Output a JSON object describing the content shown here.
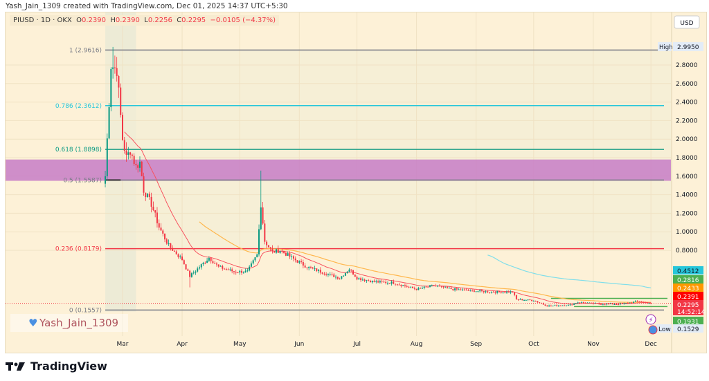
{
  "credit": "Yash_Jain_1309 created with TradingView.com, Dec 01, 2025 14:37 UTC+5:30",
  "legend": {
    "symbol": "PIUSD · 1D · OKX",
    "o_label": "O",
    "o": "0.2390",
    "h_label": "H",
    "h": "0.2390",
    "l_label": "L",
    "l": "0.2256",
    "c_label": "C",
    "c": "0.2295",
    "change": "−0.0105 (−4.37%)"
  },
  "watermark": {
    "text": "Yash_Jain_1309",
    "icon": "heart-icon"
  },
  "footer": {
    "brand": "TradingView",
    "icon": "tradingview-logo-icon"
  },
  "currency": "USD",
  "colors": {
    "up": "#089981",
    "down": "#f23645",
    "ema_short": "#f7525f",
    "ema_long": "#ffb74d",
    "sma_long": "#80deea",
    "zone": "#c77dc7"
  },
  "chart_data": {
    "type": "candlestick",
    "symbol": "PIUSD",
    "interval": "1D",
    "exchange": "OKX",
    "ylim": [
      0.0,
      3.2
    ],
    "y_ticks": [
      "2.8000",
      "2.6000",
      "2.4000",
      "2.2000",
      "2.0000",
      "1.8000",
      "1.6000",
      "1.4000",
      "1.2000",
      "1.0000",
      "0.8000"
    ],
    "x_ticks": [
      {
        "label": "Mar",
        "date": "2025-03-01"
      },
      {
        "label": "Apr",
        "date": "2025-04-01"
      },
      {
        "label": "May",
        "date": "2025-05-01"
      },
      {
        "label": "Jun",
        "date": "2025-06-01"
      },
      {
        "label": "Jul",
        "date": "2025-07-01"
      },
      {
        "label": "Aug",
        "date": "2025-08-01"
      },
      {
        "label": "Sep",
        "date": "2025-09-01"
      },
      {
        "label": "Oct",
        "date": "2025-10-01"
      },
      {
        "label": "Nov",
        "date": "2025-11-01"
      },
      {
        "label": "Dec",
        "date": "2025-12-01"
      }
    ],
    "approx_closes": [
      [
        "2025-02-20",
        1.6
      ],
      [
        "2025-02-23",
        2.8
      ],
      [
        "2025-02-26",
        2.75
      ],
      [
        "2025-03-01",
        2.0
      ],
      [
        "2025-03-03",
        1.8
      ],
      [
        "2025-03-05",
        1.88
      ],
      [
        "2025-03-08",
        1.7
      ],
      [
        "2025-03-10",
        1.75
      ],
      [
        "2025-03-12",
        1.45
      ],
      [
        "2025-03-16",
        1.3
      ],
      [
        "2025-03-20",
        1.05
      ],
      [
        "2025-03-25",
        0.85
      ],
      [
        "2025-04-01",
        0.7
      ],
      [
        "2025-04-05",
        0.52
      ],
      [
        "2025-04-10",
        0.62
      ],
      [
        "2025-04-15",
        0.72
      ],
      [
        "2025-04-20",
        0.62
      ],
      [
        "2025-04-28",
        0.57
      ],
      [
        "2025-05-05",
        0.57
      ],
      [
        "2025-05-10",
        0.75
      ],
      [
        "2025-05-12",
        1.3
      ],
      [
        "2025-05-14",
        0.9
      ],
      [
        "2025-05-18",
        0.78
      ],
      [
        "2025-05-22",
        0.8
      ],
      [
        "2025-05-28",
        0.72
      ],
      [
        "2025-06-05",
        0.62
      ],
      [
        "2025-06-15",
        0.55
      ],
      [
        "2025-06-22",
        0.5
      ],
      [
        "2025-06-27",
        0.6
      ],
      [
        "2025-07-01",
        0.5
      ],
      [
        "2025-07-10",
        0.46
      ],
      [
        "2025-07-20",
        0.45
      ],
      [
        "2025-08-01",
        0.38
      ],
      [
        "2025-08-10",
        0.42
      ],
      [
        "2025-08-20",
        0.38
      ],
      [
        "2025-09-01",
        0.36
      ],
      [
        "2025-09-10",
        0.35
      ],
      [
        "2025-09-20",
        0.35
      ],
      [
        "2025-09-22",
        0.27
      ],
      [
        "2025-10-01",
        0.26
      ],
      [
        "2025-10-08",
        0.2
      ],
      [
        "2025-10-20",
        0.21
      ],
      [
        "2025-10-24",
        0.24
      ],
      [
        "2025-11-05",
        0.22
      ],
      [
        "2025-11-15",
        0.22
      ],
      [
        "2025-11-25",
        0.25
      ],
      [
        "2025-12-01",
        0.2295
      ]
    ],
    "session_high": {
      "label": "High",
      "value": "2.9950",
      "price": 2.995
    },
    "session_low": {
      "label": "Low",
      "value": "0.1529",
      "price": 0.1529
    },
    "fib_levels": [
      {
        "label": "1 (2.9616)",
        "price": 2.9616,
        "color": "#787b86"
      },
      {
        "label": "0.786 (2.3612)",
        "price": 2.3612,
        "color": "#26c6da"
      },
      {
        "label": "0.618 (1.8898)",
        "price": 1.8898,
        "color": "#089981"
      },
      {
        "label": "0.5 (1.5587)",
        "price": 1.5587,
        "color": "#787b86"
      },
      {
        "label": "0.236 (0.8179)",
        "price": 0.8179,
        "color": "#f23645"
      },
      {
        "label": "0 (0.1557)",
        "price": 0.1557,
        "color": "#787b86"
      }
    ],
    "zone": {
      "from": 1.55,
      "to": 1.78
    },
    "range_box": {
      "top": 0.2816,
      "bottom": 0.1931,
      "color": "#4caf50"
    },
    "price_badges": [
      {
        "value": "0.4512",
        "price": 0.4512,
        "color": "#26c6da"
      },
      {
        "value": "0.2816",
        "price": 0.2816,
        "color": "#4caf50"
      },
      {
        "value": "0.2433",
        "price": 0.2433,
        "color": "#ff9800"
      },
      {
        "value": "0.2391",
        "price": 0.2391,
        "color": "#ff0000"
      },
      {
        "value": "0.2295",
        "price": 0.2295,
        "color": "#f23645",
        "sub": "14:52:14"
      },
      {
        "value": "0.1931",
        "price": 0.1931,
        "color": "#4caf50"
      }
    ]
  }
}
